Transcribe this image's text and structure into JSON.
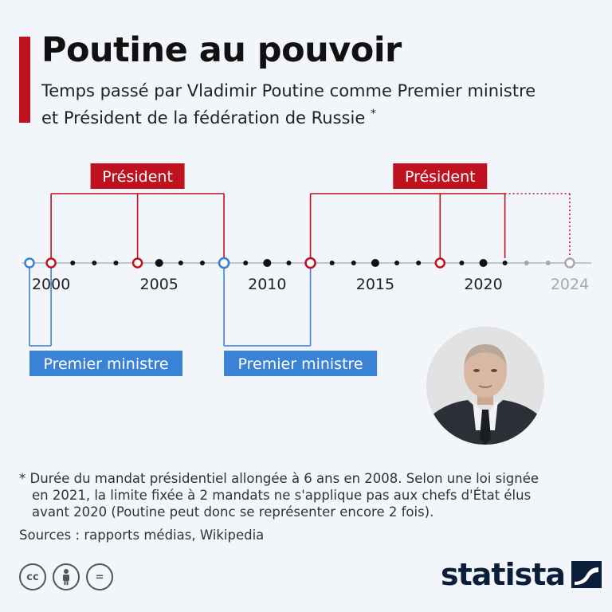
{
  "header": {
    "title": "Poutine au pouvoir",
    "subtitle": "Temps passé par Vladimir Poutine comme Premier ministre et Président de la fédération de Russie",
    "subtitle_mark": "*"
  },
  "chart_data": {
    "type": "timeline",
    "x_range": [
      1999,
      2024
    ],
    "ticks": [
      {
        "year": 2000,
        "label": "2000"
      },
      {
        "year": 2005,
        "label": "2005"
      },
      {
        "year": 2010,
        "label": "2010"
      },
      {
        "year": 2015,
        "label": "2015"
      },
      {
        "year": 2020,
        "label": "2020"
      },
      {
        "year": 2024,
        "label": "2024",
        "muted": true
      }
    ],
    "term_markers": [
      {
        "year": 1999,
        "role": "Premier ministre"
      },
      {
        "year": 2000,
        "role": "Président"
      },
      {
        "year": 2004,
        "role": "Président"
      },
      {
        "year": 2008,
        "role": "Président"
      },
      {
        "year": 2008,
        "role": "Premier ministre"
      },
      {
        "year": 2012,
        "role": "Premier ministre"
      },
      {
        "year": 2012,
        "role": "Président"
      },
      {
        "year": 2018,
        "role": "Président"
      },
      {
        "year": 2024,
        "role": "Président",
        "projected": true
      }
    ],
    "president_periods": [
      {
        "label": "Président",
        "start": 2000,
        "end": 2008,
        "inner_marks": [
          2004
        ]
      },
      {
        "label": "Président",
        "start": 2012,
        "end": 2021,
        "projected_end": 2024,
        "inner_marks": [
          2018
        ]
      }
    ],
    "prime_minister_periods": [
      {
        "label": "Premier ministre",
        "start": 1999,
        "end": 2000
      },
      {
        "label": "Premier ministre",
        "start": 2008,
        "end": 2012
      }
    ],
    "colors": {
      "president": "#c0111f",
      "prime_minister": "#3a82d6",
      "axis": "#bfc6cf",
      "muted": "#a8a8a8"
    }
  },
  "photo": {
    "alt": "Vladimir Poutine"
  },
  "footnote": {
    "line1": "* Durée du mandat présidentiel allongée à 6 ans en 2008. Selon une loi signée",
    "line2": "en 2021, la limite fixée à 2 mandats ne s'applique pas aux chefs d'État élus",
    "line3": "avant 2020 (Poutine peut donc se représenter encore 2 fois)."
  },
  "sources": "Sources : rapports médias, Wikipedia",
  "license": {
    "cc": "cc",
    "by": "",
    "nd": "="
  },
  "brand": {
    "name": "statista",
    "accent": "#0b1f3a"
  }
}
